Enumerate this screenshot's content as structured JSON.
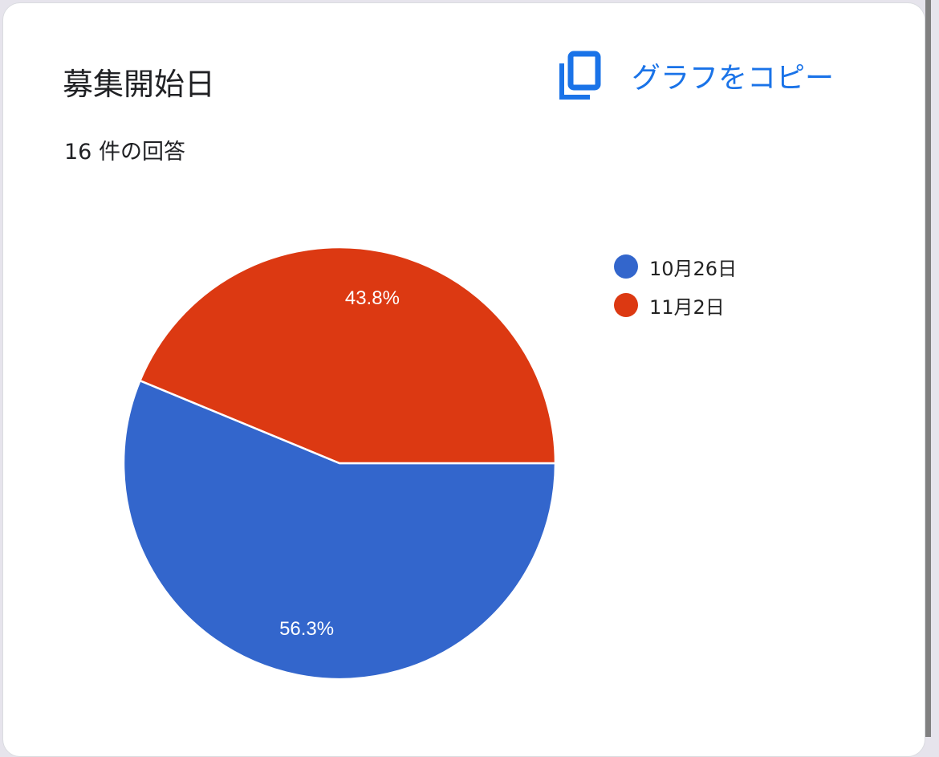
{
  "card": {
    "title": "募集開始日",
    "response_count": "16 件の回答",
    "copy_button": {
      "label": "グラフをコピー",
      "icon": "copy-icon",
      "color": "#1a73e8"
    }
  },
  "chart_data": {
    "type": "pie",
    "categories": [
      "10月26日",
      "11月2日"
    ],
    "values": [
      56.3,
      43.8
    ],
    "labels": [
      "56.3%",
      "43.8%"
    ],
    "colors": [
      "#3366cc",
      "#dc3912"
    ],
    "legend_position": "right"
  }
}
